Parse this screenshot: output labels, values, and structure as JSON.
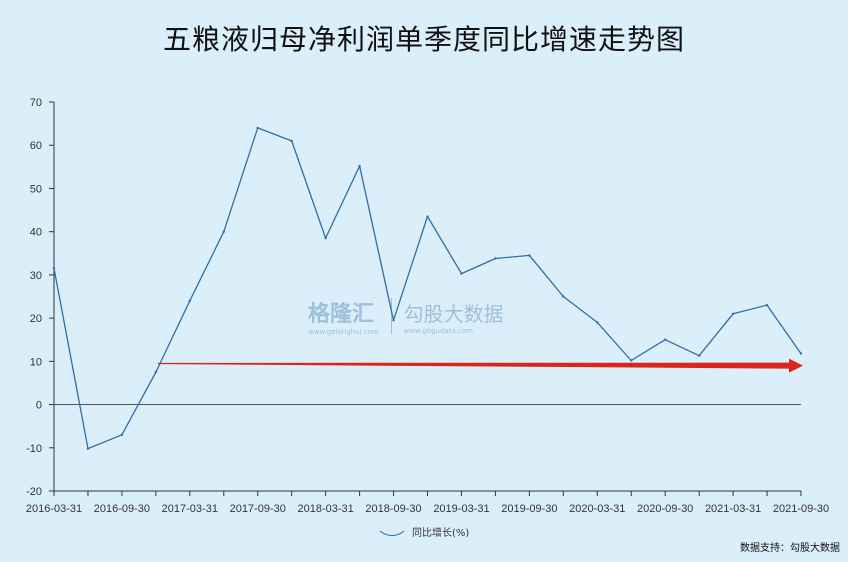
{
  "title": "五粮液归母净利润单季度同比增速走势图",
  "source": "数据支持：勾股大数据",
  "watermark": {
    "logo_text": "格隆汇",
    "logo_sub": "www.gelonghui.com",
    "brand_text": "勾股大数据",
    "brand_sub": "www.gogudata.com"
  },
  "colors": {
    "line": "#2f6fa3",
    "arrow": "#d9261c",
    "background": "#dbeffb"
  },
  "chart_data": {
    "type": "line",
    "x": [
      "2016-03-31",
      "2016-06-30",
      "2016-09-30",
      "2016-12-31",
      "2017-03-31",
      "2017-06-30",
      "2017-09-30",
      "2017-12-31",
      "2018-03-31",
      "2018-06-30",
      "2018-09-30",
      "2018-12-31",
      "2019-03-31",
      "2019-06-30",
      "2019-09-30",
      "2019-12-31",
      "2020-03-31",
      "2020-06-30",
      "2020-09-30",
      "2020-12-31",
      "2021-03-31",
      "2021-06-30",
      "2021-09-30"
    ],
    "x_tick_labels": [
      "2016-03-31",
      "2016-09-30",
      "2017-03-31",
      "2017-09-30",
      "2018-03-31",
      "2018-09-30",
      "2019-03-31",
      "2019-09-30",
      "2020-03-31",
      "2020-09-30",
      "2021-03-31",
      "2021-09-30"
    ],
    "series": [
      {
        "name": "同比增长(%)",
        "values": [
          31.5,
          -10.2,
          -7.0,
          7.5,
          24.0,
          40.0,
          64.0,
          61.0,
          38.5,
          55.2,
          19.5,
          43.5,
          30.3,
          33.8,
          34.5,
          25.0,
          19.0,
          10.2,
          15.0,
          11.3,
          21.0,
          23.0,
          11.8
        ]
      }
    ],
    "ylim": [
      -20,
      70
    ],
    "yticks": [
      -20,
      -10,
      0,
      10,
      20,
      30,
      40,
      50,
      60,
      70
    ],
    "annotations": [
      {
        "type": "arrow",
        "from_x": "2016-12-31",
        "to_x": "2021-09-30",
        "y_start": 9.5,
        "y_end": 9.0
      }
    ],
    "grid": false,
    "legend": "bottom-center"
  }
}
